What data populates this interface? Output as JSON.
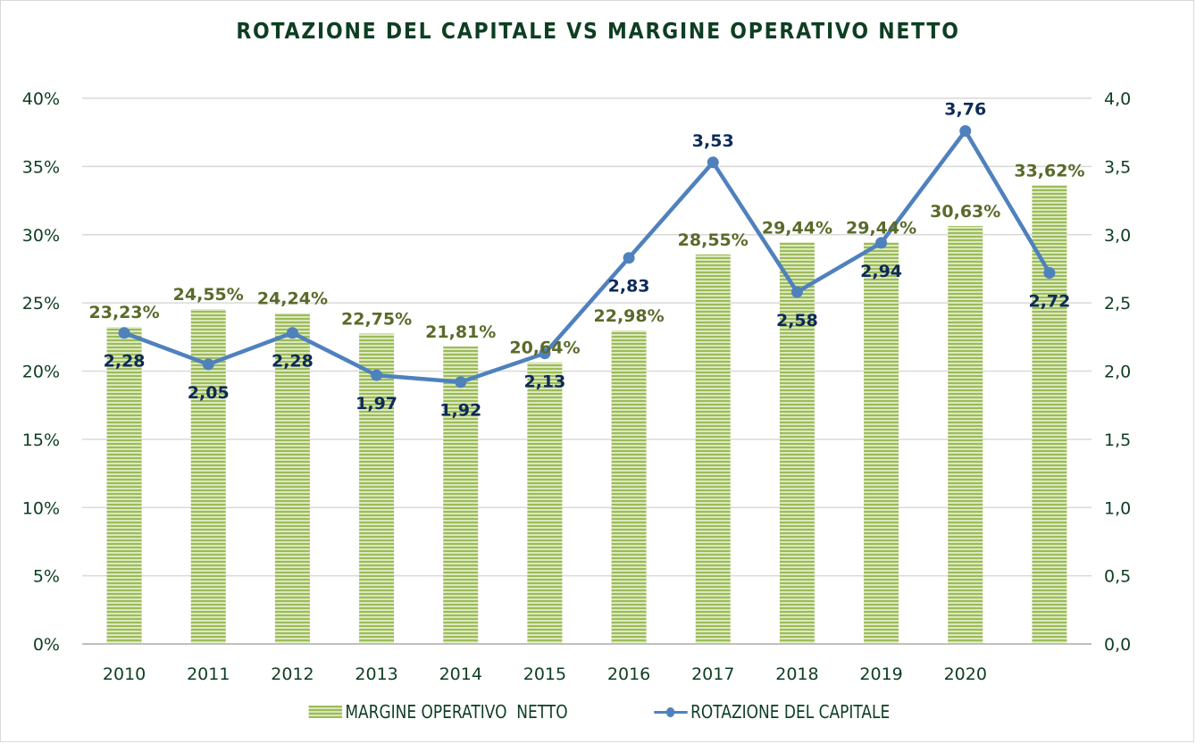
{
  "chart_data": {
    "type": "bar",
    "title": "ROTAZIONE DEL CAPITALE VS MARGINE OPERATIVO NETTO",
    "categories": [
      "2010",
      "2011",
      "2012",
      "2013",
      "2014",
      "2015",
      "2016",
      "2017",
      "2018",
      "2019",
      "2020",
      ""
    ],
    "series": [
      {
        "name": "MARGINE OPERATIVO  NETTO",
        "type": "bar",
        "axis": "left",
        "values": [
          23.23,
          24.55,
          24.24,
          22.75,
          21.81,
          20.64,
          22.98,
          28.55,
          29.44,
          29.44,
          30.63,
          33.62
        ],
        "labels": [
          "23,23%",
          "24,55%",
          "24,24%",
          "22,75%",
          "21,81%",
          "20,64%",
          "22,98%",
          "28,55%",
          "29,44%",
          "29,44%",
          "30,63%",
          "33,62%"
        ],
        "color": "#9bbb59"
      },
      {
        "name": "ROTAZIONE DEL CAPITALE",
        "type": "line",
        "axis": "right",
        "values": [
          2.28,
          2.05,
          2.28,
          1.97,
          1.92,
          2.13,
          2.83,
          3.53,
          2.58,
          2.94,
          3.76,
          2.72
        ],
        "labels": [
          "2,28",
          "2,05",
          "2,28",
          "1,97",
          "1,92",
          "2,13",
          "2,83",
          "3,53",
          "2,58",
          "2,94",
          "3,76",
          "2,72"
        ],
        "color": "#4f81bd"
      }
    ],
    "y_left": {
      "range": [
        0,
        40
      ],
      "ticks": [
        "0%",
        "5%",
        "10%",
        "15%",
        "20%",
        "25%",
        "30%",
        "35%",
        "40%"
      ]
    },
    "y_right": {
      "range": [
        0,
        4
      ],
      "ticks": [
        "0,0",
        "0,5",
        "1,0",
        "1,5",
        "2,0",
        "2,5",
        "3,0",
        "3,5",
        "4,0"
      ]
    },
    "grid": true,
    "legend": {
      "placement": "bottom",
      "entries": [
        "MARGINE OPERATIVO  NETTO",
        "ROTAZIONE DEL CAPITALE"
      ]
    }
  }
}
